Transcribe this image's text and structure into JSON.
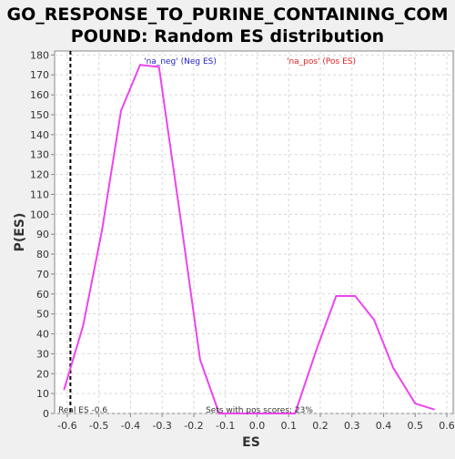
{
  "chart_data": {
    "type": "line",
    "title_lines": [
      "GO_RESPONSE_TO_PURINE_CONTAINING_COM",
      "POUND: Random ES distribution"
    ],
    "xlabel": "ES",
    "ylabel": "P(ES)",
    "xlim": [
      -0.64,
      0.62
    ],
    "ylim": [
      0,
      182
    ],
    "x_ticks": [
      -0.6,
      -0.5,
      -0.4,
      -0.3,
      -0.2,
      -0.1,
      0.0,
      0.1,
      0.2,
      0.3,
      0.4,
      0.5,
      0.6
    ],
    "x_tick_labels": [
      "-0.6",
      "-0.5",
      "-0.4",
      "-0.3",
      "-0.2",
      "-0.1",
      "0.0",
      "0.1",
      "0.2",
      "0.3",
      "0.4",
      "0.5",
      "0.6"
    ],
    "y_ticks": [
      0,
      10,
      20,
      30,
      40,
      50,
      60,
      70,
      80,
      90,
      100,
      110,
      120,
      130,
      140,
      150,
      160,
      170,
      180
    ],
    "y_tick_labels": [
      "0",
      "10",
      "20",
      "30",
      "40",
      "50",
      "60",
      "70",
      "80",
      "90",
      "100",
      "110",
      "120",
      "130",
      "140",
      "150",
      "160",
      "170",
      "180"
    ],
    "grid": true,
    "series": [
      {
        "color": "#ee44ee",
        "x": [
          -0.61,
          -0.55,
          -0.49,
          -0.43,
          -0.37,
          -0.31,
          -0.24,
          -0.18,
          -0.12,
          -0.06,
          0.0,
          0.06,
          0.12,
          0.19,
          0.25,
          0.31,
          0.37,
          0.43,
          0.5,
          0.56
        ],
        "y": [
          12,
          44,
          92,
          152,
          175,
          174,
          96,
          27,
          0,
          0,
          0,
          0,
          0,
          33,
          59,
          59,
          47,
          23,
          5,
          2
        ]
      }
    ],
    "real_es_line": {
      "x": -0.59,
      "color": "#000000",
      "style": "dashed"
    },
    "annotations": {
      "neg_label": "'na_neg' (Neg ES)",
      "neg_color": "#2222cc",
      "pos_label": "'na_pos' (Pos ES)",
      "pos_color": "#dd2222",
      "real_es_text": "Real ES -0.6",
      "pos_scores_text": "Sets with pos scores: 23%"
    }
  }
}
